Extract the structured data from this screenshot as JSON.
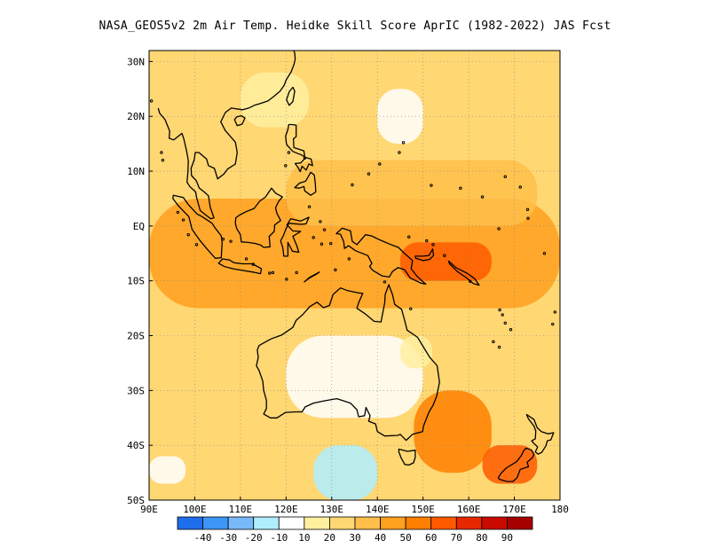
{
  "title": "NASA_GEOS5v2  2m Air Temp. Heidke Skill Score AprIC (1982-2022) JAS Fcst",
  "map": {
    "lon_range": [
      90,
      180
    ],
    "lat_range": [
      -50,
      32
    ],
    "x_ticks": [
      {
        "lon": 90,
        "label": "90E"
      },
      {
        "lon": 100,
        "label": "100E"
      },
      {
        "lon": 110,
        "label": "110E"
      },
      {
        "lon": 120,
        "label": "120E"
      },
      {
        "lon": 130,
        "label": "130E"
      },
      {
        "lon": 140,
        "label": "140E"
      },
      {
        "lon": 150,
        "label": "150E"
      },
      {
        "lon": 160,
        "label": "160E"
      },
      {
        "lon": 170,
        "label": "170E"
      },
      {
        "lon": 180,
        "label": "180"
      }
    ],
    "y_ticks": [
      {
        "lat": 30,
        "label": "30N"
      },
      {
        "lat": 20,
        "label": "20N"
      },
      {
        "lat": 10,
        "label": "10N"
      },
      {
        "lat": 0,
        "label": "EQ"
      },
      {
        "lat": -10,
        "label": "10S"
      },
      {
        "lat": -20,
        "label": "20S"
      },
      {
        "lat": -30,
        "label": "30S"
      },
      {
        "lat": -40,
        "label": "40S"
      },
      {
        "lat": -50,
        "label": "50S"
      }
    ]
  },
  "colorbar": {
    "colors": [
      "#1e6eeb",
      "#3c96f5",
      "#78b9fa",
      "#afeeff",
      "#ffffff",
      "#fff0a0",
      "#ffd773",
      "#ffbf4a",
      "#ffa01e",
      "#ff8000",
      "#ff5a00",
      "#e62800",
      "#c80a00",
      "#a50000"
    ],
    "labels": [
      "-40",
      "-30",
      "-20",
      "-10",
      "10",
      "20",
      "30",
      "40",
      "50",
      "60",
      "70",
      "80",
      "90"
    ]
  },
  "chart_data": {
    "type": "heatmap",
    "title": "NASA_GEOS5v2  2m Air Temp. Heidke Skill Score AprIC (1982-2022) JAS Fcst",
    "x_range": [
      90,
      180
    ],
    "y_range": [
      -50,
      32
    ],
    "levels": [
      -40,
      -30,
      -20,
      -10,
      10,
      20,
      30,
      40,
      50,
      60,
      70,
      80,
      90
    ],
    "regions": [
      {
        "lon": [
          90,
          180
        ],
        "lat": [
          -50,
          32
        ],
        "value": 25
      },
      {
        "lon": [
          90,
          180
        ],
        "lat": [
          -15,
          5
        ],
        "value": 40
      },
      {
        "lon": [
          120,
          175
        ],
        "lat": [
          0,
          12
        ],
        "value": 35
      },
      {
        "lon": [
          145,
          165
        ],
        "lat": [
          -10,
          -3
        ],
        "value": 60
      },
      {
        "lon": [
          148,
          165
        ],
        "lat": [
          -45,
          -30
        ],
        "value": 55
      },
      {
        "lon": [
          163,
          175
        ],
        "lat": [
          -47,
          -40
        ],
        "value": 60
      },
      {
        "lon": [
          120,
          150
        ],
        "lat": [
          -35,
          -20
        ],
        "value": 5
      },
      {
        "lon": [
          126,
          140
        ],
        "lat": [
          -50,
          -40
        ],
        "value": -20
      },
      {
        "lon": [
          145,
          152
        ],
        "lat": [
          -26,
          -20
        ],
        "value": 10
      },
      {
        "lon": [
          140,
          150
        ],
        "lat": [
          15,
          25
        ],
        "value": 5
      },
      {
        "lon": [
          110,
          125
        ],
        "lat": [
          18,
          28
        ],
        "value": 10
      },
      {
        "lon": [
          90,
          98
        ],
        "lat": [
          -47,
          -42
        ],
        "value": -10
      }
    ]
  }
}
